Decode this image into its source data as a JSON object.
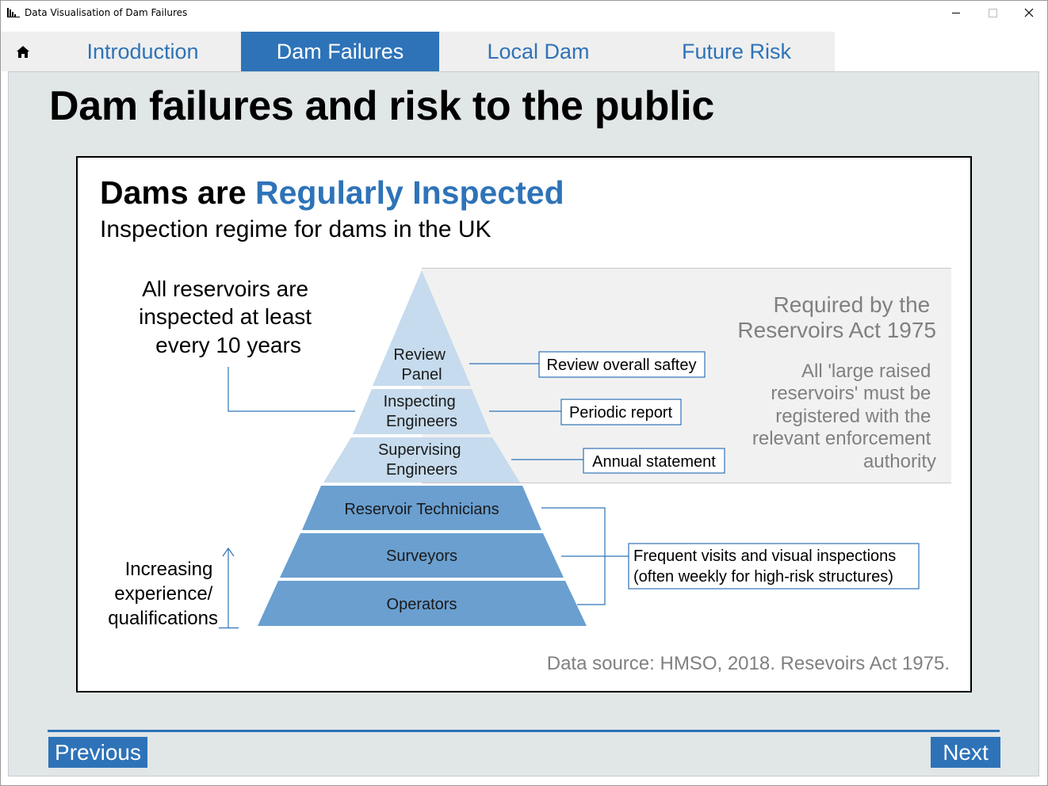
{
  "window": {
    "title": "Data Visualisation of Dam Failures",
    "app_icon": "chart-app-icon"
  },
  "tabs": {
    "home_icon": "home-icon",
    "items": [
      {
        "label": "Introduction"
      },
      {
        "label": "Dam Failures",
        "active": true
      },
      {
        "label": "Local Dam"
      },
      {
        "label": "Future Risk"
      }
    ]
  },
  "page": {
    "title": "Dam failures and risk to the public"
  },
  "infographic": {
    "heading_plain": "Dams are ",
    "heading_accent": "Regularly Inspected",
    "subheading": "Inspection regime for dams in the UK",
    "left_note": [
      "All reservoirs are",
      "inspected at least",
      "every 10 years"
    ],
    "axis_note": [
      "Increasing",
      "experience/",
      "qualifications"
    ],
    "right_title": [
      "Required by the",
      "Reservoirs Act 1975"
    ],
    "right_body": [
      "All 'large raised",
      "reservoirs' must be",
      "registered with the",
      "relevant enforcement",
      "authority"
    ],
    "levels": [
      {
        "label": [
          "Review",
          "Panel"
        ]
      },
      {
        "label": [
          "Inspecting",
          "Engineers"
        ]
      },
      {
        "label": [
          "Supervising",
          "Engineers"
        ]
      },
      {
        "label": [
          "Reservoir Technicians"
        ]
      },
      {
        "label": [
          "Surveyors"
        ]
      },
      {
        "label": [
          "Operators"
        ]
      }
    ],
    "callouts": {
      "review": "Review overall saftey",
      "periodic": "Periodic report",
      "annual": "Annual statement",
      "frequent": [
        "Frequent visits and visual inspections",
        "(often weekly for high-risk structures)"
      ]
    },
    "source": "Data source: HMSO, 2018. Resevoirs Act 1975.",
    "colors": {
      "accent": "#2e73b8",
      "upper_tier": "#c6dbed",
      "lower_tier": "#6a9fd0",
      "grey_box": "#f1f1f1",
      "grey_text": "#808080"
    }
  },
  "nav": {
    "previous": "Previous",
    "next": "Next"
  }
}
